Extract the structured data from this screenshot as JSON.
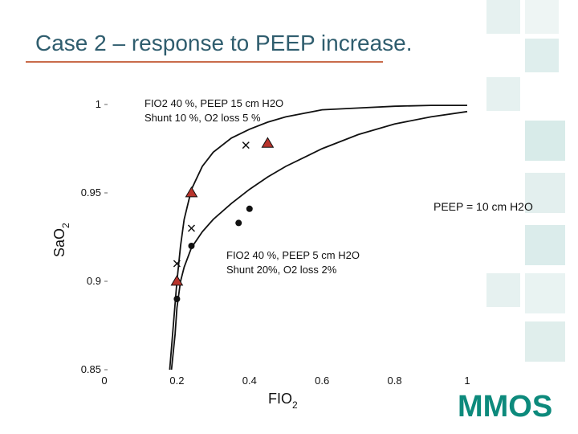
{
  "slide": {
    "title": "Case 2 – response to PEEP increase."
  },
  "logo": {
    "text": "MMOS",
    "color": "#0d8a7c"
  },
  "colors": {
    "title": "#2f5d6e",
    "rule": "#c96b4a",
    "accent_squares": "#dfeeed",
    "triangle_fill": "#b8342c"
  },
  "chart_data": {
    "type": "line",
    "xlabel": "FIO",
    "xlabel_sub": "2",
    "ylabel": "SaO",
    "ylabel_sub": "2",
    "xlim": [
      0,
      1
    ],
    "ylim": [
      0.85,
      1.0
    ],
    "x_ticks": [
      {
        "v": 0,
        "label": "0"
      },
      {
        "v": 0.2,
        "label": "0.2"
      },
      {
        "v": 0.4,
        "label": "0.4"
      },
      {
        "v": 0.6,
        "label": "0.6"
      },
      {
        "v": 0.8,
        "label": "0.8"
      },
      {
        "v": 1.0,
        "label": "1"
      }
    ],
    "y_ticks": [
      {
        "v": 0.85,
        "label": "0.85"
      },
      {
        "v": 0.9,
        "label": "0.9"
      },
      {
        "v": 0.95,
        "label": "0.95"
      },
      {
        "v": 1.0,
        "label": "1"
      }
    ],
    "grid": false,
    "series": [
      {
        "name": "FIO2 40 %, PEEP 15 cm H2O Shunt 10 %, O2 loss 5 %",
        "x": [
          0.18,
          0.19,
          0.2,
          0.21,
          0.22,
          0.24,
          0.27,
          0.3,
          0.35,
          0.4,
          0.45,
          0.5,
          0.55,
          0.6,
          0.7,
          0.8,
          0.9,
          1.0
        ],
        "y": [
          0.85,
          0.875,
          0.9,
          0.92,
          0.935,
          0.952,
          0.965,
          0.973,
          0.981,
          0.986,
          0.99,
          0.993,
          0.995,
          0.997,
          0.998,
          0.999,
          0.9995,
          0.9995
        ]
      },
      {
        "name": "FIO2 40 %, PEEP 5 cm H2O Shunt 20%, O2 loss 2%",
        "x": [
          0.185,
          0.195,
          0.2,
          0.21,
          0.22,
          0.24,
          0.27,
          0.3,
          0.35,
          0.4,
          0.45,
          0.5,
          0.6,
          0.7,
          0.8,
          0.9,
          1.0
        ],
        "y": [
          0.85,
          0.87,
          0.885,
          0.9,
          0.908,
          0.919,
          0.928,
          0.935,
          0.944,
          0.952,
          0.959,
          0.965,
          0.975,
          0.983,
          0.989,
          0.993,
          0.996
        ]
      }
    ],
    "triangles": [
      {
        "x": 0.2,
        "y": 0.9
      },
      {
        "x": 0.24,
        "y": 0.95
      },
      {
        "x": 0.45,
        "y": 0.978
      }
    ],
    "circles": [
      {
        "x": 0.2,
        "y": 0.89
      },
      {
        "x": 0.24,
        "y": 0.92
      },
      {
        "x": 0.37,
        "y": 0.933
      },
      {
        "x": 0.4,
        "y": 0.941
      }
    ],
    "crosses": [
      {
        "x": 0.2,
        "y": 0.91
      },
      {
        "x": 0.24,
        "y": 0.93
      },
      {
        "x": 0.39,
        "y": 0.977
      }
    ],
    "annotations": {
      "upper_line1": "FIO2  40 %, PEEP 15 cm H2O",
      "upper_line2": "Shunt  10 %, O2 loss  5 %",
      "lower_line1": "FIO2  40 %, PEEP 5 cm H2O",
      "lower_line2": "Shunt  20%, O2 loss 2%",
      "peep": "PEEP = 10 cm H2O"
    }
  }
}
